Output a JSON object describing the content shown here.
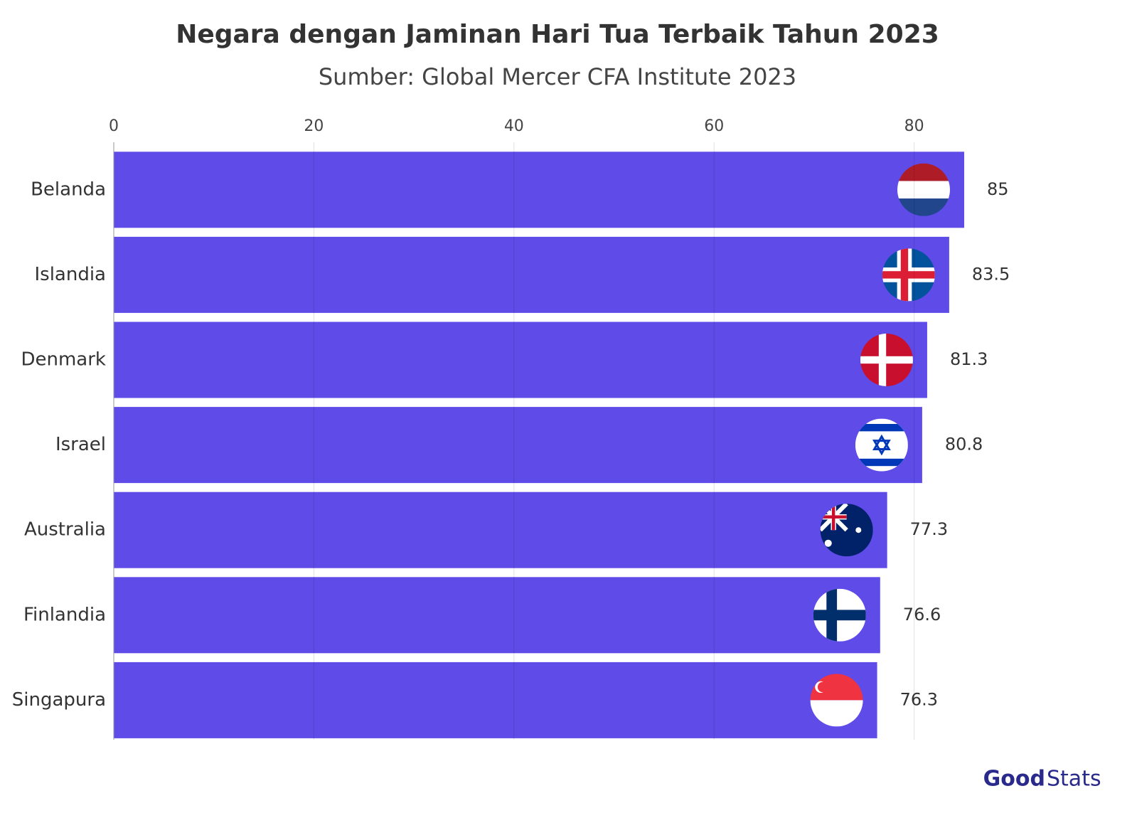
{
  "chart_data": {
    "type": "bar",
    "orientation": "horizontal",
    "title": "Negara dengan Jaminan Hari Tua Terbaik Tahun 2023",
    "subtitle": "Sumber: Global Mercer CFA Institute 2023",
    "categories": [
      "Belanda",
      "Islandia",
      "Denmark",
      "Israel",
      "Australia",
      "Finlandia",
      "Singapura"
    ],
    "values": [
      85,
      83.5,
      81.3,
      80.8,
      77.3,
      76.6,
      76.3
    ],
    "color": "#5f4be8",
    "xlim": [
      0,
      85
    ],
    "xticks": [
      0,
      20,
      40,
      60,
      80
    ],
    "grid": true
  },
  "brand": [
    "Good",
    "Stats"
  ]
}
